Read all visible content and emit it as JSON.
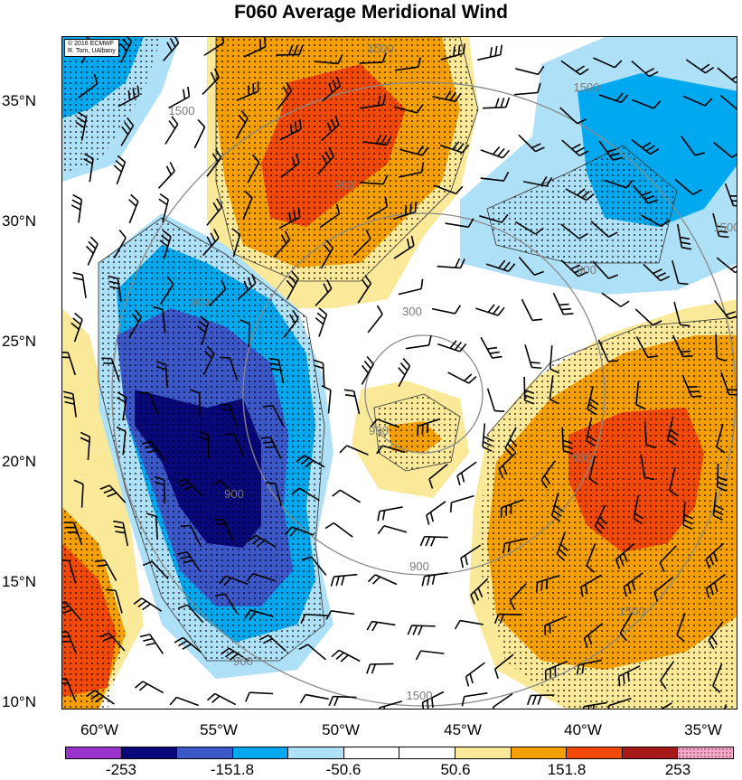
{
  "title": "F060 Average Meridional Wind",
  "credit": [
    "© 2016 ECMWF",
    "R. Torn, UAlbany"
  ],
  "lat_labels": [
    "35°N",
    "30°N",
    "25°N",
    "20°N",
    "15°N",
    "10°N"
  ],
  "lon_labels": [
    "60°W",
    "55°W",
    "50°W",
    "45°W",
    "40°W",
    "35°W"
  ],
  "colorbar": {
    "colors": [
      "#9933cc",
      "#08087a",
      "#3b57c8",
      "#00a8f0",
      "#aee0f8",
      "#ffffff",
      "#ffffff",
      "#fbe99a",
      "#f5a000",
      "#f24a06",
      "#a81818",
      "#f9a8c8"
    ],
    "labels": [
      "-253",
      "-151.8",
      "-50.6",
      "50.6",
      "151.8",
      "253"
    ]
  },
  "contour_labels": [
    "1500",
    "1500",
    "1500",
    "1500",
    "1500",
    "1500",
    "900",
    "900",
    "900",
    "900",
    "900",
    "900",
    "900",
    "300",
    "900"
  ]
}
